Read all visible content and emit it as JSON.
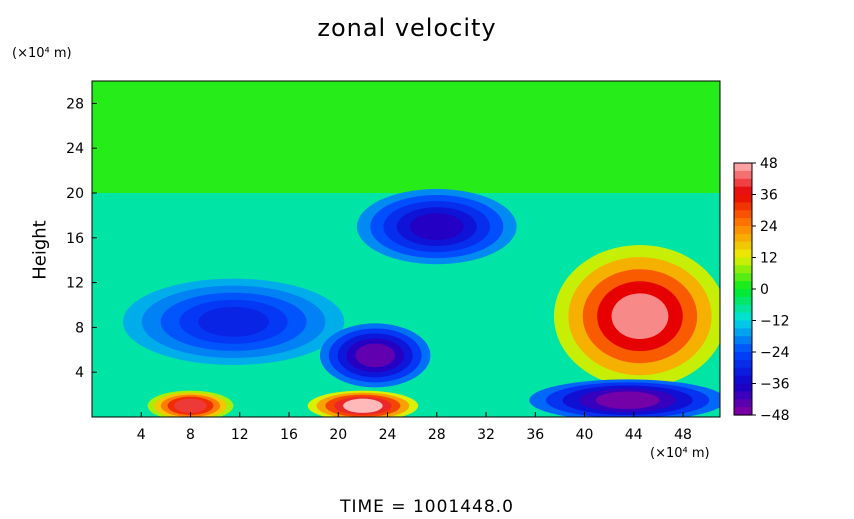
{
  "chart_data": {
    "type": "heatmap",
    "title": "zonal velocity",
    "ylabel": "Height",
    "xlabel": "",
    "x_unit": "(×10⁴ m)",
    "y_unit": "(×10⁴ m)",
    "x_ticks": [
      4,
      8,
      12,
      16,
      20,
      24,
      28,
      32,
      36,
      40,
      44,
      48
    ],
    "y_ticks": [
      4,
      8,
      12,
      16,
      20,
      24,
      28
    ],
    "xlim": [
      0,
      51
    ],
    "ylim": [
      0,
      30
    ],
    "colorbar": {
      "ticks": [
        48,
        36,
        24,
        12,
        0,
        -12,
        -24,
        -36,
        -48
      ],
      "range": [
        -48,
        48
      ]
    },
    "features": [
      {
        "region": "upper layer",
        "x": [
          0,
          51
        ],
        "y": [
          20,
          30
        ],
        "value": 2
      },
      {
        "region": "jet",
        "x": [
          38,
          51
        ],
        "y": [
          3,
          15
        ],
        "value": 45
      },
      {
        "region": "easterly band",
        "x": [
          3,
          20
        ],
        "y": [
          5,
          12
        ],
        "value": -30
      },
      {
        "region": "easterly core",
        "x": [
          19,
          27
        ],
        "y": [
          3,
          8
        ],
        "value": -44
      },
      {
        "region": "upper easterly",
        "x": [
          22,
          34
        ],
        "y": [
          14,
          20
        ],
        "value": -38
      },
      {
        "region": "surface westerly",
        "x": [
          18,
          26
        ],
        "y": [
          0,
          2
        ],
        "value": 48
      },
      {
        "region": "surface westerly",
        "x": [
          5,
          11
        ],
        "y": [
          0,
          2
        ],
        "value": 40
      },
      {
        "region": "surface easterly",
        "x": [
          36,
          51
        ],
        "y": [
          0,
          3
        ],
        "value": -46
      }
    ]
  },
  "footer": {
    "time_label": "TIME  =  1001448.0"
  }
}
